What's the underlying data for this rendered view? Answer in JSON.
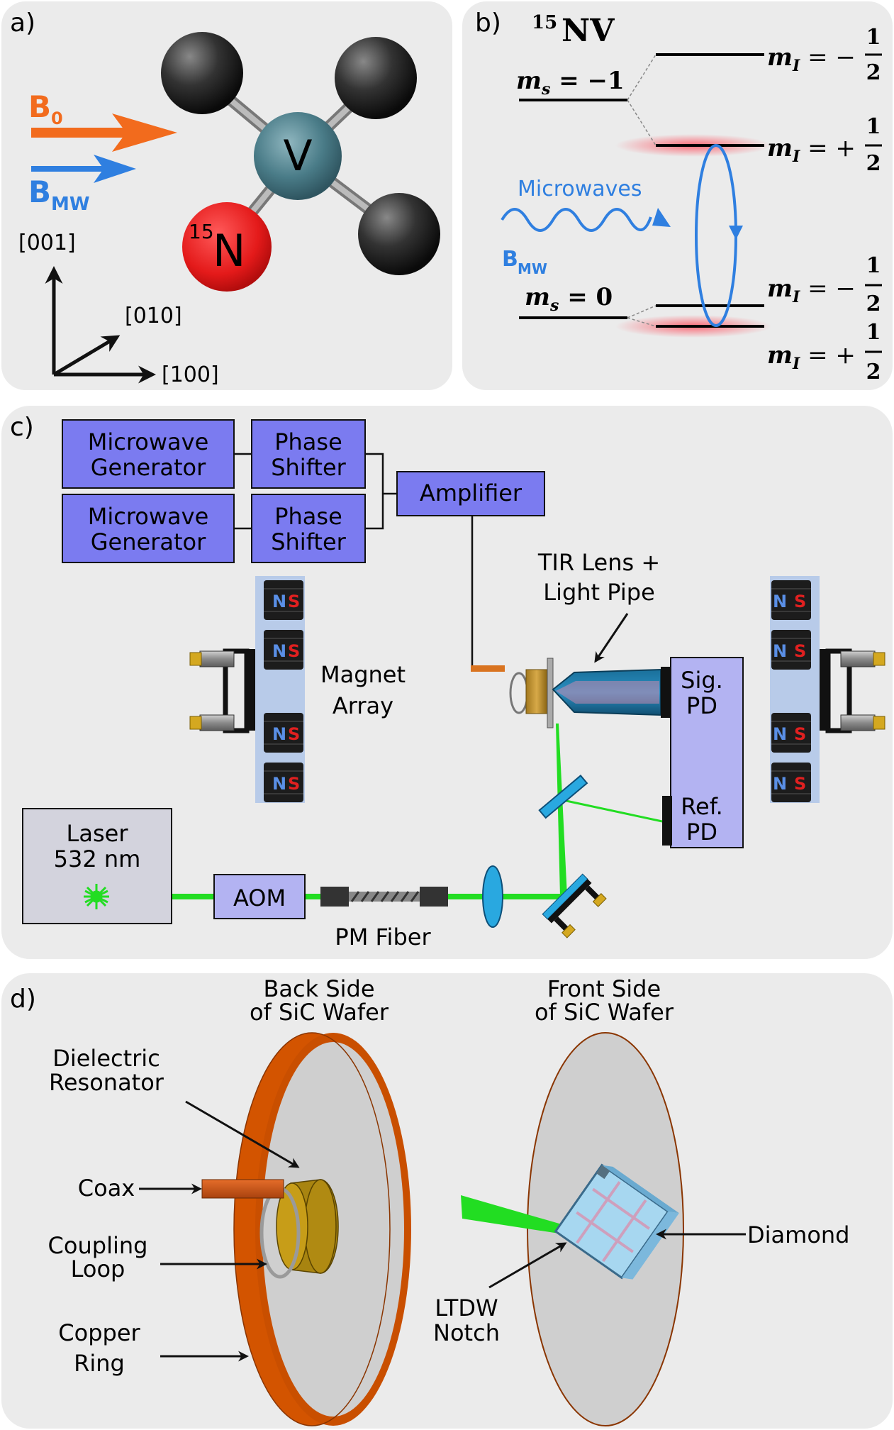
{
  "panels": {
    "a": "a)",
    "b": "b)",
    "c": "c)",
    "d": "d)"
  },
  "colors": {
    "panel_bg": "#ebebeb",
    "orange": "#f26b1d",
    "blue": "#2f7fe0",
    "box_dark": "#7b7bf0",
    "box_light": "#b3b3f2",
    "green": "#22dd22",
    "copper": "#d35400"
  },
  "a": {
    "b0_label": "B",
    "b0_sub": "0",
    "bmw_label": "B",
    "bmw_sub": "MW",
    "atom_v": "V",
    "atom_n": "N",
    "atom_n_sup": "15",
    "axis_001": "[001]",
    "axis_010": "[010]",
    "axis_100": "[100]"
  },
  "b": {
    "title_sup": "15",
    "title": "NV",
    "ms_minus1": "m_s = −1",
    "ms_zero": "m_s = 0",
    "mi_minus_half": "m_I = − 1/2",
    "mi_plus_half": "m_I = + 1/2",
    "microwaves": "Microwaves",
    "bmw_label": "B",
    "bmw_sub": "MW"
  },
  "c": {
    "mw_gen_1": [
      "Microwave",
      "Generator"
    ],
    "mw_gen_2": [
      "Microwave",
      "Generator"
    ],
    "phase_1": [
      "Phase",
      "Shifter"
    ],
    "phase_2": [
      "Phase",
      "Shifter"
    ],
    "amplifier": "Amplifier",
    "tir": [
      "TIR Lens +",
      "Light Pipe"
    ],
    "magnet_array": [
      "Magnet",
      "Array"
    ],
    "sig_pd": [
      "Sig.",
      "PD"
    ],
    "ref_pd": [
      "Ref.",
      "PD"
    ],
    "laser": [
      "Laser",
      "532 nm"
    ],
    "aom": "AOM",
    "pm_fiber": "PM Fiber",
    "magnet_n": "N",
    "magnet_s": "S"
  },
  "d": {
    "back_side": [
      "Back Side",
      "of SiC Wafer"
    ],
    "front_side": [
      "Front Side",
      "of SiC Wafer"
    ],
    "dielectric": [
      "Dielectric",
      "Resonator"
    ],
    "coax": "Coax",
    "coupling": [
      "Coupling",
      "Loop"
    ],
    "copper": [
      "Copper",
      "Ring"
    ],
    "ltdw": [
      "LTDW",
      "Notch"
    ],
    "diamond": "Diamond"
  }
}
